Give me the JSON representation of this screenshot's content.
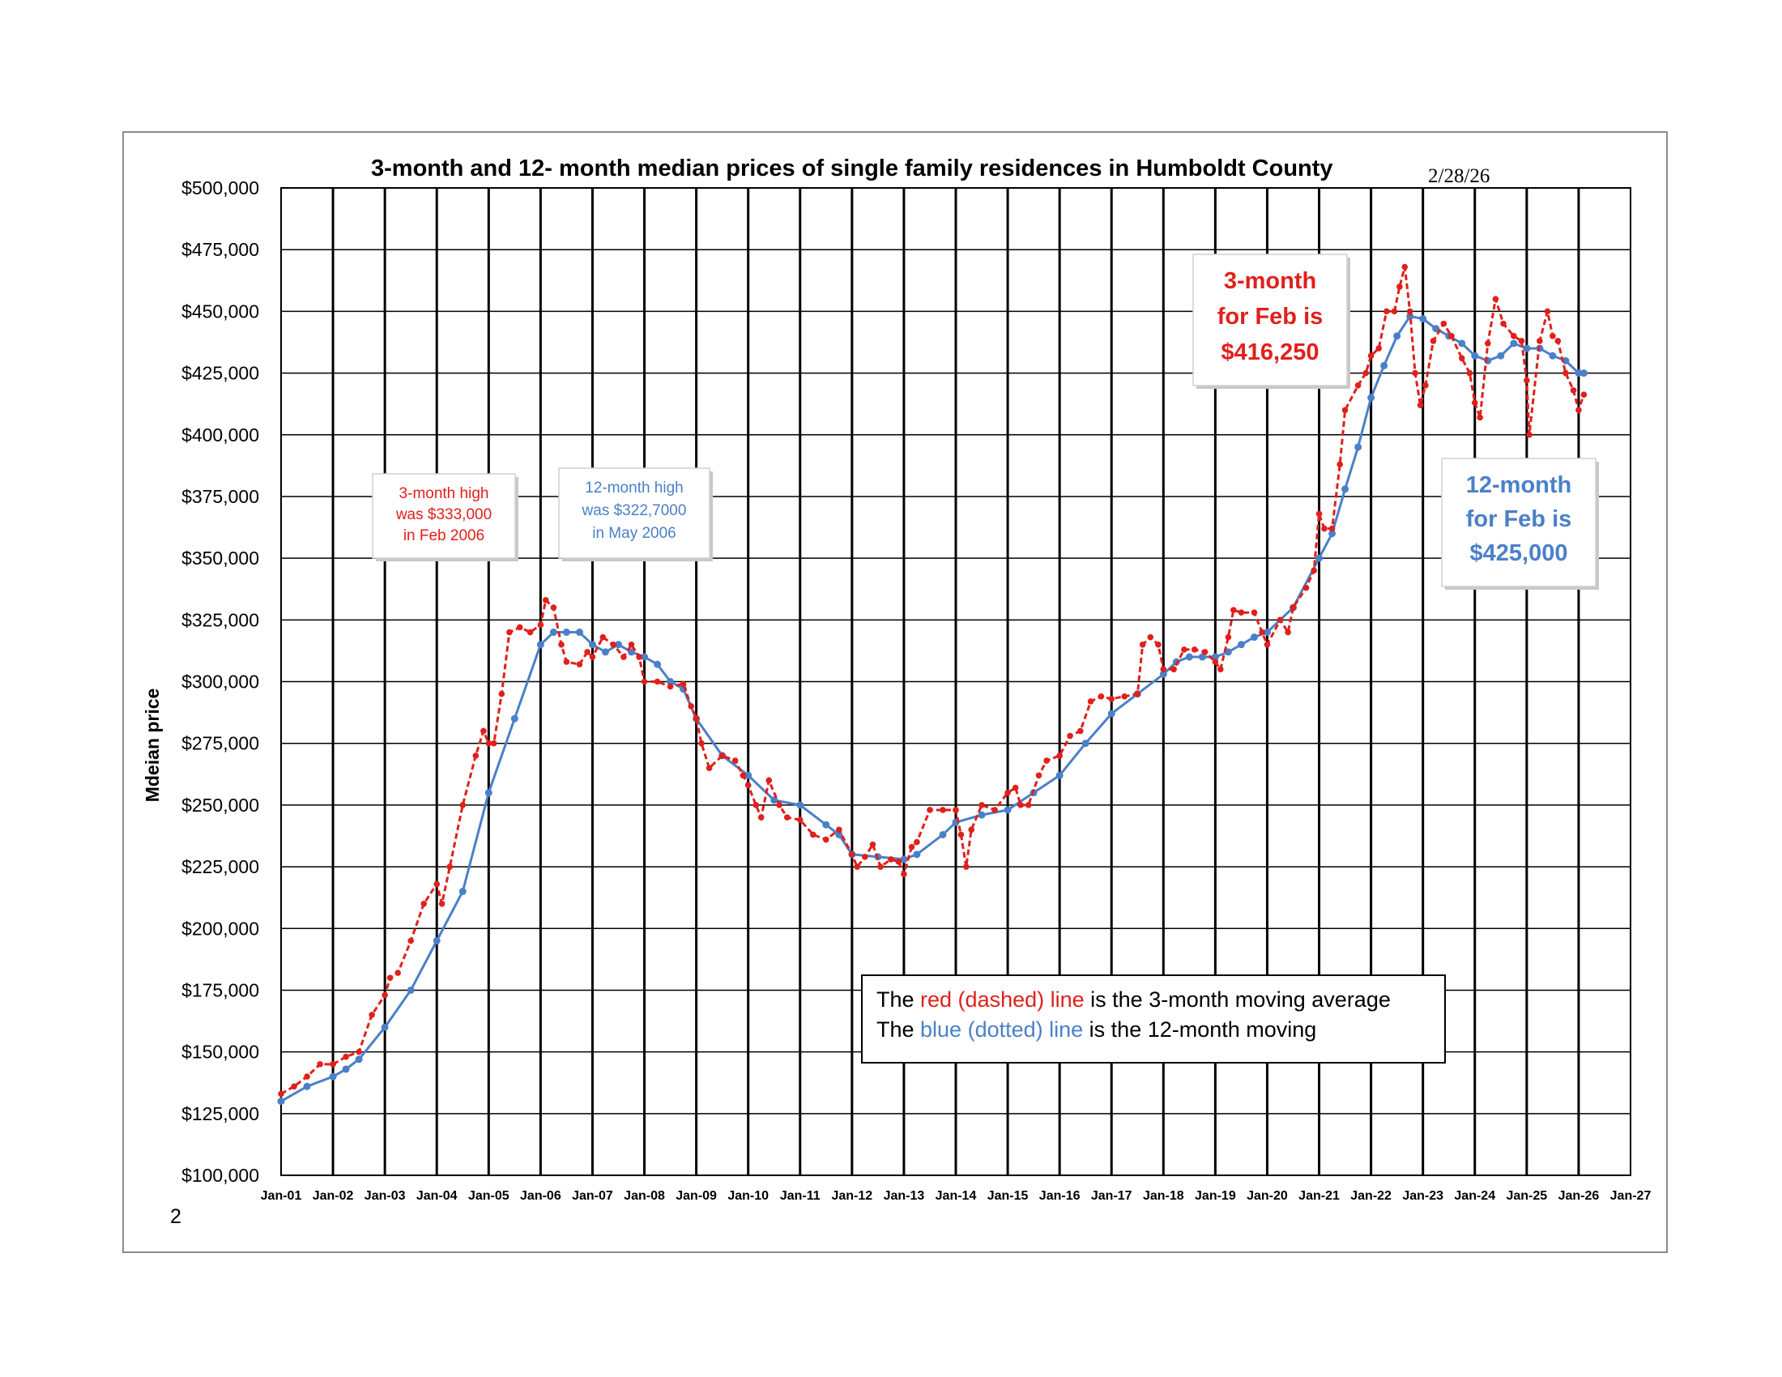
{
  "chart_data": {
    "type": "line",
    "title": "3-month and 12- month median prices of single family residences in Humboldt County",
    "date_stamp": "2/28/26",
    "ylabel": "Mdeian price",
    "xlabel": "",
    "page_number": "2",
    "ylim": [
      100000,
      500000
    ],
    "y_ticks": [
      "$100,000",
      "$125,000",
      "$150,000",
      "$175,000",
      "$200,000",
      "$225,000",
      "$250,000",
      "$275,000",
      "$300,000",
      "$325,000",
      "$350,000",
      "$375,000",
      "$400,000",
      "$425,000",
      "$450,000",
      "$475,000",
      "$500,000"
    ],
    "x_ticks": [
      "Jan-01",
      "Jan-02",
      "Jan-03",
      "Jan-04",
      "Jan-05",
      "Jan-06",
      "Jan-07",
      "Jan-08",
      "Jan-09",
      "Jan-10",
      "Jan-11",
      "Jan-12",
      "Jan-13",
      "Jan-14",
      "Jan-15",
      "Jan-16",
      "Jan-17",
      "Jan-18",
      "Jan-19",
      "Jan-20",
      "Jan-21",
      "Jan-22",
      "Jan-23",
      "Jan-24",
      "Jan-25",
      "Jan-26",
      "Jan-27"
    ],
    "grid": true,
    "series": [
      {
        "name": "3-month moving average",
        "color": "#e0201b",
        "style": "dashed",
        "points": [
          [
            2001.0,
            133000
          ],
          [
            2001.25,
            136000
          ],
          [
            2001.5,
            140000
          ],
          [
            2001.75,
            145000
          ],
          [
            2002.0,
            145000
          ],
          [
            2002.25,
            148000
          ],
          [
            2002.5,
            150000
          ],
          [
            2002.75,
            165000
          ],
          [
            2003.0,
            173000
          ],
          [
            2003.1,
            180000
          ],
          [
            2003.25,
            182000
          ],
          [
            2003.5,
            195000
          ],
          [
            2003.75,
            210000
          ],
          [
            2004.0,
            218000
          ],
          [
            2004.1,
            210000
          ],
          [
            2004.25,
            225000
          ],
          [
            2004.5,
            250000
          ],
          [
            2004.75,
            270000
          ],
          [
            2004.9,
            280000
          ],
          [
            2005.0,
            275000
          ],
          [
            2005.1,
            275000
          ],
          [
            2005.25,
            295000
          ],
          [
            2005.4,
            320000
          ],
          [
            2005.6,
            322000
          ],
          [
            2005.8,
            320000
          ],
          [
            2006.0,
            323000
          ],
          [
            2006.1,
            333000
          ],
          [
            2006.25,
            330000
          ],
          [
            2006.4,
            315000
          ],
          [
            2006.5,
            308000
          ],
          [
            2006.75,
            307000
          ],
          [
            2006.9,
            312000
          ],
          [
            2007.0,
            310000
          ],
          [
            2007.2,
            318000
          ],
          [
            2007.4,
            315000
          ],
          [
            2007.6,
            310000
          ],
          [
            2007.75,
            315000
          ],
          [
            2007.9,
            310000
          ],
          [
            2008.0,
            300000
          ],
          [
            2008.25,
            300000
          ],
          [
            2008.5,
            298000
          ],
          [
            2008.75,
            299000
          ],
          [
            2008.9,
            290000
          ],
          [
            2009.0,
            285000
          ],
          [
            2009.1,
            275000
          ],
          [
            2009.25,
            265000
          ],
          [
            2009.5,
            270000
          ],
          [
            2009.75,
            268000
          ],
          [
            2009.9,
            262000
          ],
          [
            2010.0,
            258000
          ],
          [
            2010.15,
            250000
          ],
          [
            2010.25,
            245000
          ],
          [
            2010.4,
            260000
          ],
          [
            2010.6,
            250000
          ],
          [
            2010.75,
            245000
          ],
          [
            2011.0,
            244000
          ],
          [
            2011.25,
            238000
          ],
          [
            2011.5,
            236000
          ],
          [
            2011.75,
            240000
          ],
          [
            2012.0,
            230000
          ],
          [
            2012.1,
            225000
          ],
          [
            2012.25,
            229000
          ],
          [
            2012.4,
            234000
          ],
          [
            2012.55,
            225000
          ],
          [
            2012.75,
            228000
          ],
          [
            2012.9,
            227000
          ],
          [
            2013.0,
            222000
          ],
          [
            2013.15,
            233000
          ],
          [
            2013.25,
            235000
          ],
          [
            2013.5,
            248000
          ],
          [
            2013.75,
            248000
          ],
          [
            2014.0,
            248000
          ],
          [
            2014.1,
            238000
          ],
          [
            2014.2,
            225000
          ],
          [
            2014.3,
            240000
          ],
          [
            2014.5,
            250000
          ],
          [
            2014.75,
            248000
          ],
          [
            2015.0,
            255000
          ],
          [
            2015.15,
            257000
          ],
          [
            2015.25,
            250000
          ],
          [
            2015.4,
            250000
          ],
          [
            2015.6,
            262000
          ],
          [
            2015.75,
            268000
          ],
          [
            2016.0,
            270000
          ],
          [
            2016.2,
            278000
          ],
          [
            2016.4,
            280000
          ],
          [
            2016.6,
            292000
          ],
          [
            2016.8,
            294000
          ],
          [
            2017.0,
            293000
          ],
          [
            2017.25,
            294000
          ],
          [
            2017.5,
            295000
          ],
          [
            2017.6,
            315000
          ],
          [
            2017.75,
            318000
          ],
          [
            2017.9,
            315000
          ],
          [
            2018.0,
            305000
          ],
          [
            2018.2,
            305000
          ],
          [
            2018.4,
            313000
          ],
          [
            2018.6,
            313000
          ],
          [
            2018.8,
            312000
          ],
          [
            2019.0,
            308000
          ],
          [
            2019.1,
            305000
          ],
          [
            2019.25,
            318000
          ],
          [
            2019.35,
            329000
          ],
          [
            2019.5,
            328000
          ],
          [
            2019.75,
            328000
          ],
          [
            2019.9,
            320000
          ],
          [
            2020.0,
            315000
          ],
          [
            2020.25,
            325000
          ],
          [
            2020.4,
            320000
          ],
          [
            2020.5,
            330000
          ],
          [
            2020.75,
            338000
          ],
          [
            2020.9,
            345000
          ],
          [
            2021.0,
            368000
          ],
          [
            2021.1,
            362000
          ],
          [
            2021.25,
            362000
          ],
          [
            2021.4,
            388000
          ],
          [
            2021.5,
            410000
          ],
          [
            2021.75,
            420000
          ],
          [
            2021.9,
            425000
          ],
          [
            2022.0,
            432000
          ],
          [
            2022.15,
            435000
          ],
          [
            2022.3,
            450000
          ],
          [
            2022.45,
            450000
          ],
          [
            2022.55,
            460000
          ],
          [
            2022.65,
            468000
          ],
          [
            2022.75,
            450000
          ],
          [
            2022.85,
            425000
          ],
          [
            2022.95,
            412000
          ],
          [
            2023.05,
            420000
          ],
          [
            2023.2,
            438000
          ],
          [
            2023.4,
            445000
          ],
          [
            2023.55,
            440000
          ],
          [
            2023.75,
            431000
          ],
          [
            2023.9,
            425000
          ],
          [
            2024.0,
            413000
          ],
          [
            2024.1,
            407000
          ],
          [
            2024.25,
            437000
          ],
          [
            2024.4,
            455000
          ],
          [
            2024.55,
            445000
          ],
          [
            2024.75,
            440000
          ],
          [
            2024.9,
            438000
          ],
          [
            2025.0,
            422000
          ],
          [
            2025.05,
            400000
          ],
          [
            2025.25,
            438000
          ],
          [
            2025.4,
            450000
          ],
          [
            2025.5,
            440000
          ],
          [
            2025.6,
            438000
          ],
          [
            2025.75,
            425000
          ],
          [
            2025.9,
            418000
          ],
          [
            2026.0,
            410000
          ],
          [
            2026.1,
            416250
          ]
        ]
      },
      {
        "name": "12-month moving average",
        "color": "#4a80c8",
        "style": "dotted",
        "points": [
          [
            2001.0,
            130000
          ],
          [
            2001.5,
            136000
          ],
          [
            2002.0,
            140000
          ],
          [
            2002.25,
            143000
          ],
          [
            2002.5,
            147000
          ],
          [
            2003.0,
            160000
          ],
          [
            2003.5,
            175000
          ],
          [
            2004.0,
            195000
          ],
          [
            2004.5,
            215000
          ],
          [
            2005.0,
            255000
          ],
          [
            2005.5,
            285000
          ],
          [
            2006.0,
            315000
          ],
          [
            2006.25,
            320000
          ],
          [
            2006.5,
            320000
          ],
          [
            2006.75,
            320000
          ],
          [
            2007.0,
            315000
          ],
          [
            2007.25,
            312000
          ],
          [
            2007.5,
            315000
          ],
          [
            2007.75,
            312000
          ],
          [
            2008.0,
            310000
          ],
          [
            2008.25,
            307000
          ],
          [
            2008.5,
            300000
          ],
          [
            2008.75,
            297000
          ],
          [
            2009.0,
            285000
          ],
          [
            2009.5,
            270000
          ],
          [
            2010.0,
            262000
          ],
          [
            2010.5,
            252000
          ],
          [
            2011.0,
            250000
          ],
          [
            2011.5,
            242000
          ],
          [
            2011.75,
            238000
          ],
          [
            2012.0,
            230000
          ],
          [
            2012.5,
            229000
          ],
          [
            2013.0,
            228000
          ],
          [
            2013.25,
            230000
          ],
          [
            2013.75,
            238000
          ],
          [
            2014.0,
            243000
          ],
          [
            2014.5,
            246000
          ],
          [
            2015.0,
            248000
          ],
          [
            2015.5,
            255000
          ],
          [
            2016.0,
            262000
          ],
          [
            2016.5,
            275000
          ],
          [
            2017.0,
            287000
          ],
          [
            2017.5,
            295000
          ],
          [
            2018.0,
            303000
          ],
          [
            2018.25,
            308000
          ],
          [
            2018.5,
            310000
          ],
          [
            2018.75,
            310000
          ],
          [
            2019.0,
            310000
          ],
          [
            2019.25,
            312000
          ],
          [
            2019.5,
            315000
          ],
          [
            2019.75,
            318000
          ],
          [
            2020.0,
            320000
          ],
          [
            2020.5,
            330000
          ],
          [
            2021.0,
            350000
          ],
          [
            2021.25,
            360000
          ],
          [
            2021.5,
            378000
          ],
          [
            2021.75,
            395000
          ],
          [
            2022.0,
            415000
          ],
          [
            2022.25,
            428000
          ],
          [
            2022.5,
            440000
          ],
          [
            2022.75,
            448000
          ],
          [
            2023.0,
            447000
          ],
          [
            2023.25,
            443000
          ],
          [
            2023.5,
            440000
          ],
          [
            2023.75,
            437000
          ],
          [
            2024.0,
            432000
          ],
          [
            2024.25,
            430000
          ],
          [
            2024.5,
            432000
          ],
          [
            2024.75,
            437000
          ],
          [
            2025.0,
            435000
          ],
          [
            2025.25,
            435000
          ],
          [
            2025.5,
            432000
          ],
          [
            2025.75,
            430000
          ],
          [
            2026.0,
            425000
          ],
          [
            2026.1,
            425000
          ]
        ]
      }
    ],
    "annotations": [
      {
        "lines": [
          "3-month high",
          "was $333,000",
          "in Feb 2006"
        ],
        "color": "#e0201b"
      },
      {
        "lines": [
          "12-month high",
          "was $322,7000",
          "in May 2006"
        ],
        "color": "#4a80c8"
      },
      {
        "lines": [
          "3-month",
          "for Feb is",
          "$416,250"
        ],
        "color": "#e0201b"
      },
      {
        "lines": [
          "12-month",
          "for Feb is",
          "$425,000"
        ],
        "color": "#4a80c8"
      }
    ],
    "legend": {
      "line1": {
        "prefix": "The ",
        "highlight": "red (dashed) line",
        "suffix": " is the 3-month moving average",
        "color": "#e0201b"
      },
      "line2": {
        "prefix": "The ",
        "highlight": "blue (dotted) line",
        "suffix": " is the 12-month moving",
        "color": "#4a80c8"
      }
    }
  }
}
